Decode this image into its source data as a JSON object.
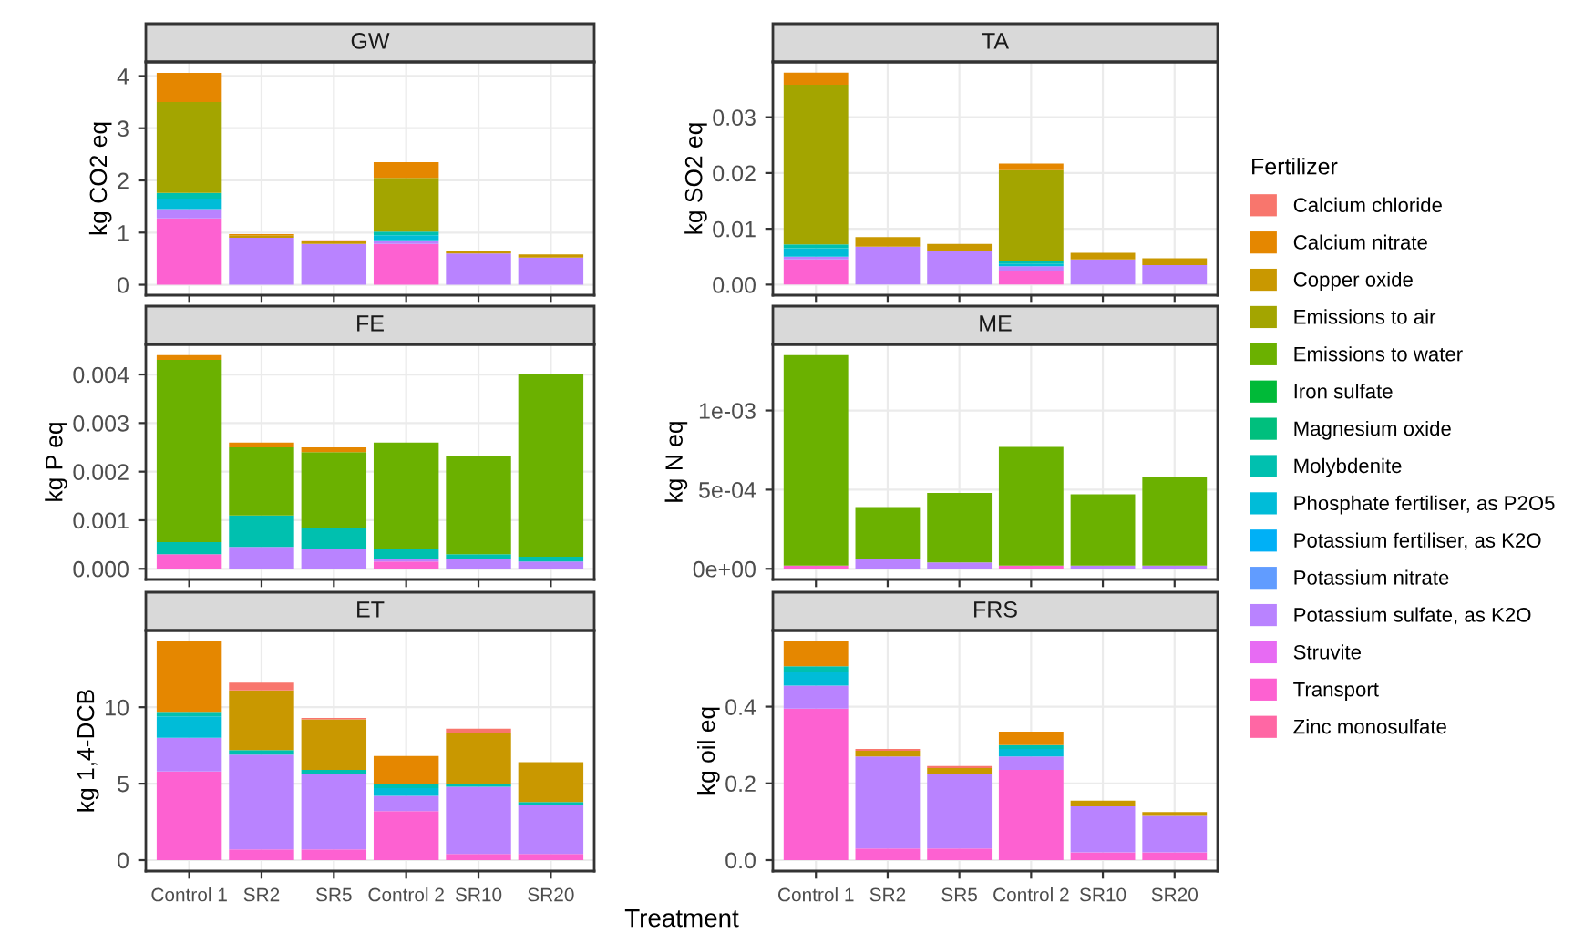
{
  "chart_data": [
    {
      "type": "bar",
      "stacked": true,
      "title": "GW",
      "ylabel": "kg CO2 eq",
      "categories": [
        null,
        null,
        null,
        null,
        null,
        null
      ],
      "ylim": [
        -0.2,
        4.27
      ],
      "yticks": [
        0,
        1,
        2,
        3,
        4
      ],
      "grid": true,
      "tick_labels": "y",
      "legend": "right",
      "legend_title": "Fertilizer",
      "series": [
        {
          "name": "Zinc monosulfate",
          "color": "#ff67a4",
          "values": [
            0,
            0,
            0,
            0,
            0,
            0
          ]
        },
        {
          "name": "Transport",
          "color": "#fd61d1",
          "values": [
            1.27,
            0,
            0,
            0.78,
            0,
            0
          ]
        },
        {
          "name": "Struvite",
          "color": "#e76bf3",
          "values": [
            0,
            0,
            0,
            0,
            0,
            0
          ]
        },
        {
          "name": "Potassium sulfate, as K2O",
          "color": "#b983ff",
          "values": [
            0.18,
            0.9,
            0.78,
            0.07,
            0.6,
            0.52
          ]
        },
        {
          "name": "Potassium nitrate",
          "color": "#619cff",
          "values": [
            0,
            0,
            0,
            0,
            0,
            0
          ]
        },
        {
          "name": "Potassium fertiliser, as K2O",
          "color": "#00b0f6",
          "values": [
            0,
            0,
            0,
            0,
            0,
            0
          ]
        },
        {
          "name": "Phosphate fertiliser, as P2O5",
          "color": "#00bcd8",
          "values": [
            0.2,
            0,
            0,
            0.1,
            0,
            0
          ]
        },
        {
          "name": "Molybdenite",
          "color": "#00c0af",
          "values": [
            0.11,
            0,
            0,
            0.07,
            0,
            0
          ]
        },
        {
          "name": "Magnesium oxide",
          "color": "#00bf7d",
          "values": [
            0,
            0,
            0,
            0,
            0,
            0
          ]
        },
        {
          "name": "Iron sulfate",
          "color": "#00ba38",
          "values": [
            0,
            0,
            0,
            0,
            0,
            0
          ]
        },
        {
          "name": "Emissions to water",
          "color": "#6bb100",
          "values": [
            0,
            0,
            0,
            0,
            0,
            0
          ]
        },
        {
          "name": "Emissions to air",
          "color": "#a3a500",
          "values": [
            1.74,
            0,
            0,
            1.03,
            0,
            0
          ]
        },
        {
          "name": "Copper oxide",
          "color": "#c99800",
          "values": [
            0,
            0.05,
            0.05,
            0,
            0.05,
            0.06
          ]
        },
        {
          "name": "Calcium nitrate",
          "color": "#e58700",
          "values": [
            0.56,
            0.02,
            0,
            0.3,
            0,
            0
          ]
        },
        {
          "name": "Calcium chloride",
          "color": "#f8766d",
          "values": [
            0,
            0,
            0.02,
            0,
            0,
            0
          ]
        }
      ]
    },
    {
      "type": "bar",
      "stacked": true,
      "title": "TA",
      "ylabel": "kg SO2 eq",
      "categories": [
        null,
        null,
        null,
        null,
        null,
        null
      ],
      "ylim": [
        -0.0019,
        0.0399
      ],
      "yticks": [
        {
          "value": 0,
          "label": "0.00"
        },
        0.01,
        0.02,
        0.03
      ],
      "grid": true,
      "tick_labels": "y",
      "series": [
        {
          "color": "#ff67a4",
          "values": [
            0,
            0,
            0,
            0,
            0,
            0
          ]
        },
        {
          "color": "#fd61d1",
          "values": [
            0.0045,
            0,
            0,
            0.0025,
            0,
            0
          ]
        },
        {
          "color": "#e76bf3",
          "values": [
            0,
            0,
            0,
            0,
            0,
            0
          ]
        },
        {
          "color": "#b983ff",
          "values": [
            0.0005,
            0.0068,
            0.006,
            0.0008,
            0.0045,
            0.0035
          ]
        },
        {
          "color": "#619cff",
          "values": [
            0,
            0,
            0,
            0,
            0,
            0
          ]
        },
        {
          "color": "#00b0f6",
          "values": [
            0,
            0,
            0,
            0,
            0,
            0
          ]
        },
        {
          "color": "#00bcd8",
          "values": [
            0.0015,
            0,
            0,
            0.0004,
            0,
            0
          ]
        },
        {
          "color": "#00c0af",
          "values": [
            0.0007,
            0,
            0,
            0.0005,
            0,
            0
          ]
        },
        {
          "color": "#00bf7d",
          "values": [
            0,
            0,
            0,
            0,
            0,
            0
          ]
        },
        {
          "color": "#00ba38",
          "values": [
            0,
            0,
            0,
            0,
            0,
            0
          ]
        },
        {
          "color": "#6bb100",
          "values": [
            0,
            0,
            0,
            0,
            0,
            0
          ]
        },
        {
          "color": "#a3a500",
          "values": [
            0.0286,
            0,
            0,
            0.0163,
            0,
            0
          ]
        },
        {
          "color": "#c99800",
          "values": [
            0,
            0.0017,
            0.0013,
            0,
            0.0012,
            0.0012
          ]
        },
        {
          "color": "#e58700",
          "values": [
            0.0022,
            0,
            0,
            0.0012,
            0,
            0
          ]
        },
        {
          "color": "#f8766d",
          "values": [
            0,
            0,
            0,
            0,
            0,
            0
          ]
        }
      ]
    },
    {
      "type": "bar",
      "stacked": true,
      "title": "FE",
      "ylabel": "kg P eq",
      "categories": [
        null,
        null,
        null,
        null,
        null,
        null
      ],
      "ylim": [
        -0.00022,
        0.00462
      ],
      "yticks": [
        {
          "value": 0,
          "label": "0.000"
        },
        0.001,
        0.002,
        0.003,
        0.004
      ],
      "grid": true,
      "tick_labels": "y",
      "series": [
        {
          "color": "#ff67a4",
          "values": [
            0,
            0,
            0,
            0,
            0,
            0
          ]
        },
        {
          "color": "#fd61d1",
          "values": [
            0.0003,
            0,
            0,
            0.00015,
            0,
            0
          ]
        },
        {
          "color": "#e76bf3",
          "values": [
            0,
            0,
            0,
            0,
            0,
            0
          ]
        },
        {
          "color": "#b983ff",
          "values": [
            0,
            0.00045,
            0.0004,
            5e-05,
            0.0002,
            0.00015
          ]
        },
        {
          "color": "#619cff",
          "values": [
            0,
            0,
            0,
            0,
            0,
            0
          ]
        },
        {
          "color": "#00b0f6",
          "values": [
            0,
            0,
            0,
            0,
            0,
            0
          ]
        },
        {
          "color": "#00bcd8",
          "values": [
            0,
            0,
            0,
            0,
            0,
            0
          ]
        },
        {
          "color": "#00c0af",
          "values": [
            0.00025,
            0.00065,
            0.00045,
            0.0002,
            0.0001,
            0.0001
          ]
        },
        {
          "color": "#00bf7d",
          "values": [
            0,
            0,
            0,
            0,
            0,
            0
          ]
        },
        {
          "color": "#00ba38",
          "values": [
            0,
            0,
            0,
            0,
            0,
            0
          ]
        },
        {
          "color": "#6bb100",
          "values": [
            0.00375,
            0.0014,
            0.00155,
            0.0022,
            0.00203,
            0.00375
          ]
        },
        {
          "color": "#a3a500",
          "values": [
            0,
            0,
            0,
            0,
            0,
            0
          ]
        },
        {
          "color": "#c99800",
          "values": [
            0,
            0,
            0,
            0,
            0,
            0
          ]
        },
        {
          "color": "#e58700",
          "values": [
            0.0001,
            0.0001,
            0.0001,
            0,
            0,
            0
          ]
        },
        {
          "color": "#f8766d",
          "values": [
            0,
            0,
            0,
            0,
            0,
            0
          ]
        }
      ]
    },
    {
      "type": "bar",
      "stacked": true,
      "title": "ME",
      "ylabel": "kg N eq",
      "categories": [
        null,
        null,
        null,
        null,
        null,
        null
      ],
      "ylim": [
        -6.75e-05,
        0.0014175
      ],
      "yticks": [
        {
          "value": 0,
          "label": "0e+00"
        },
        {
          "value": 0.0005,
          "label": "5e-04"
        },
        {
          "value": 0.001,
          "label": "1e-03"
        }
      ],
      "grid": true,
      "tick_labels": "y",
      "series": [
        {
          "color": "#ff67a4",
          "values": [
            0,
            0,
            0,
            0,
            0,
            0
          ]
        },
        {
          "color": "#fd61d1",
          "values": [
            2e-05,
            0,
            0,
            2e-05,
            0,
            0
          ]
        },
        {
          "color": "#e76bf3",
          "values": [
            0,
            0,
            0,
            0,
            0,
            0
          ]
        },
        {
          "color": "#b983ff",
          "values": [
            0,
            6e-05,
            4e-05,
            0,
            2e-05,
            2e-05
          ]
        },
        {
          "color": "#619cff",
          "values": [
            0,
            0,
            0,
            0,
            0,
            0
          ]
        },
        {
          "color": "#00b0f6",
          "values": [
            0,
            0,
            0,
            0,
            0,
            0
          ]
        },
        {
          "color": "#00bcd8",
          "values": [
            0,
            0,
            0,
            0,
            0,
            0
          ]
        },
        {
          "color": "#00c0af",
          "values": [
            0,
            0,
            0,
            0,
            0,
            0
          ]
        },
        {
          "color": "#00bf7d",
          "values": [
            0,
            0,
            0,
            0,
            0,
            0
          ]
        },
        {
          "color": "#00ba38",
          "values": [
            0,
            0,
            0,
            0,
            0,
            0
          ]
        },
        {
          "color": "#6bb100",
          "values": [
            0.00133,
            0.00033,
            0.00044,
            0.00075,
            0.00045,
            0.00056
          ]
        },
        {
          "color": "#a3a500",
          "values": [
            0,
            0,
            0,
            0,
            0,
            0
          ]
        },
        {
          "color": "#c99800",
          "values": [
            0,
            0,
            0,
            0,
            0,
            0
          ]
        },
        {
          "color": "#e58700",
          "values": [
            0,
            0,
            0,
            0,
            0,
            0
          ]
        },
        {
          "color": "#f8766d",
          "values": [
            0,
            0,
            0,
            0,
            0,
            0
          ]
        }
      ]
    },
    {
      "type": "bar",
      "stacked": true,
      "title": "ET",
      "ylabel": "kg 1,4-DCB",
      "xlabel": "Treatment",
      "categories": [
        "Control 1",
        "SR2",
        "SR5",
        "Control 2",
        "SR10",
        "SR20"
      ],
      "ylim": [
        -0.715,
        15.015
      ],
      "yticks": [
        0,
        5,
        10
      ],
      "grid": true,
      "series": [
        {
          "color": "#ff67a4",
          "values": [
            0,
            0,
            0,
            0,
            0,
            0
          ]
        },
        {
          "color": "#fd61d1",
          "values": [
            5.8,
            0.7,
            0.7,
            3.2,
            0.4,
            0.4
          ]
        },
        {
          "color": "#e76bf3",
          "values": [
            0,
            0,
            0,
            0,
            0,
            0
          ]
        },
        {
          "color": "#b983ff",
          "values": [
            2.2,
            6.2,
            4.9,
            1.0,
            4.4,
            3.2
          ]
        },
        {
          "color": "#619cff",
          "values": [
            0,
            0,
            0,
            0,
            0,
            0
          ]
        },
        {
          "color": "#00b0f6",
          "values": [
            0,
            0,
            0,
            0,
            0,
            0
          ]
        },
        {
          "color": "#00bcd8",
          "values": [
            1.4,
            0,
            0,
            0.5,
            0,
            0
          ]
        },
        {
          "color": "#00c0af",
          "values": [
            0.3,
            0.3,
            0.3,
            0.3,
            0.2,
            0.2
          ]
        },
        {
          "color": "#00bf7d",
          "values": [
            0,
            0,
            0,
            0,
            0,
            0
          ]
        },
        {
          "color": "#00ba38",
          "values": [
            0,
            0,
            0,
            0,
            0,
            0
          ]
        },
        {
          "color": "#6bb100",
          "values": [
            0,
            0,
            0,
            0,
            0,
            0
          ]
        },
        {
          "color": "#a3a500",
          "values": [
            0,
            0,
            0,
            0,
            0,
            0
          ]
        },
        {
          "color": "#c99800",
          "values": [
            0,
            3.9,
            3.3,
            0,
            3.3,
            2.6
          ]
        },
        {
          "color": "#e58700",
          "values": [
            4.6,
            0,
            0,
            1.8,
            0,
            0
          ]
        },
        {
          "color": "#f8766d",
          "values": [
            0,
            0.5,
            0.1,
            0,
            0.3,
            0
          ]
        }
      ]
    },
    {
      "type": "bar",
      "stacked": true,
      "title": "FRS",
      "ylabel": "kg oil eq",
      "categories": [
        "Control 1",
        "SR2",
        "SR5",
        "Control 2",
        "SR10",
        "SR20"
      ],
      "ylim": [
        -0.0285,
        0.5985
      ],
      "yticks": [
        {
          "value": 0,
          "label": "0.0"
        },
        0.2,
        0.4
      ],
      "grid": true,
      "series": [
        {
          "color": "#ff67a4",
          "values": [
            0,
            0,
            0,
            0,
            0,
            0
          ]
        },
        {
          "color": "#fd61d1",
          "values": [
            0.395,
            0.03,
            0.03,
            0.235,
            0.02,
            0.02
          ]
        },
        {
          "color": "#e76bf3",
          "values": [
            0,
            0,
            0,
            0,
            0,
            0
          ]
        },
        {
          "color": "#b983ff",
          "values": [
            0.06,
            0.24,
            0.195,
            0.035,
            0.12,
            0.095
          ]
        },
        {
          "color": "#619cff",
          "values": [
            0,
            0,
            0,
            0,
            0,
            0
          ]
        },
        {
          "color": "#00b0f6",
          "values": [
            0,
            0,
            0,
            0,
            0,
            0
          ]
        },
        {
          "color": "#00bcd8",
          "values": [
            0.035,
            0,
            0,
            0.02,
            0,
            0
          ]
        },
        {
          "color": "#00c0af",
          "values": [
            0.015,
            0,
            0,
            0.01,
            0,
            0
          ]
        },
        {
          "color": "#00bf7d",
          "values": [
            0,
            0,
            0,
            0,
            0,
            0
          ]
        },
        {
          "color": "#00ba38",
          "values": [
            0,
            0,
            0,
            0,
            0,
            0
          ]
        },
        {
          "color": "#6bb100",
          "values": [
            0,
            0,
            0,
            0,
            0,
            0
          ]
        },
        {
          "color": "#a3a500",
          "values": [
            0,
            0,
            0,
            0,
            0,
            0
          ]
        },
        {
          "color": "#c99800",
          "values": [
            0,
            0.015,
            0.015,
            0,
            0.015,
            0.01
          ]
        },
        {
          "color": "#e58700",
          "values": [
            0.065,
            0,
            0,
            0.035,
            0,
            0
          ]
        },
        {
          "color": "#f8766d",
          "values": [
            0,
            0.005,
            0.005,
            0,
            0,
            0
          ]
        }
      ]
    }
  ]
}
